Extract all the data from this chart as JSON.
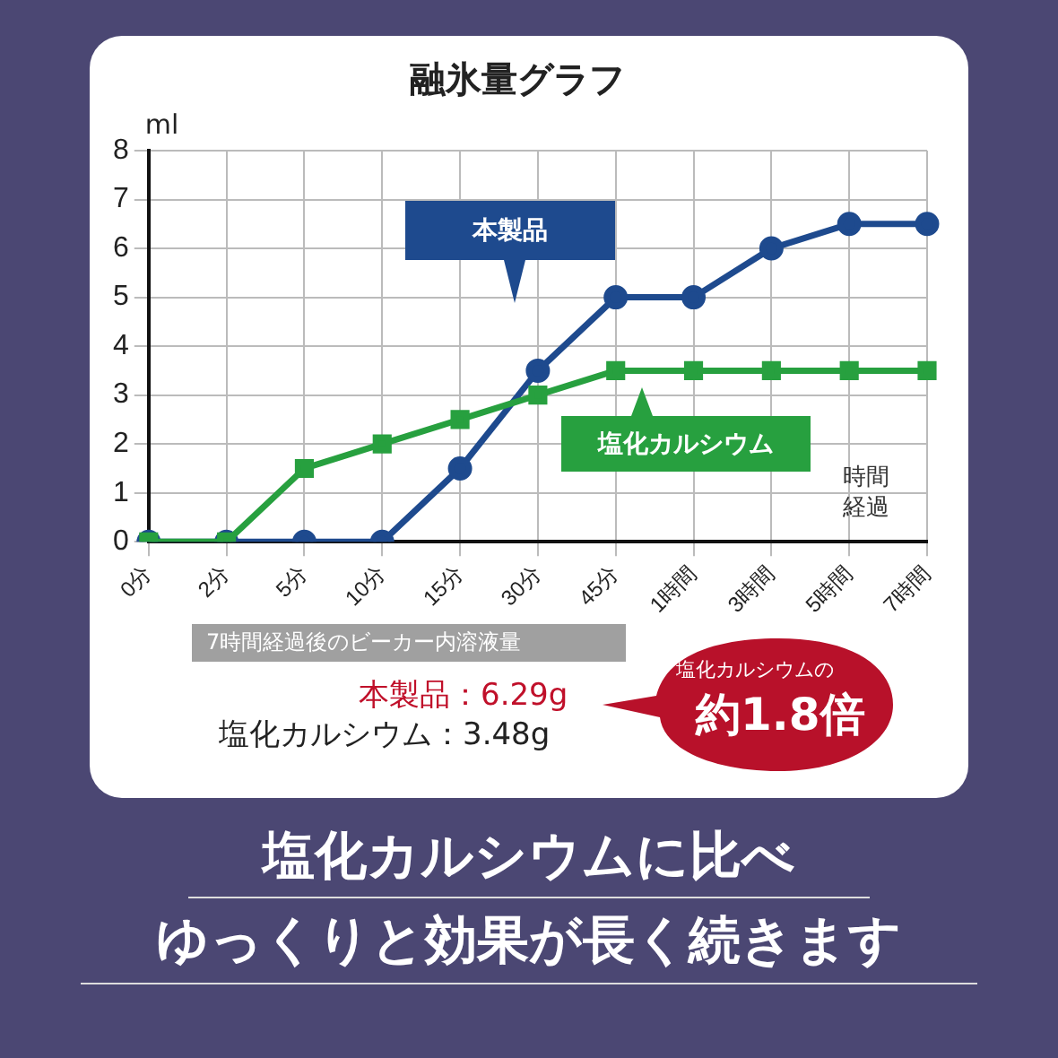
{
  "chart_data": {
    "type": "line",
    "title": "融氷量グラフ",
    "ylabel": "ml",
    "xlabel": "時間経過",
    "categories": [
      "0分",
      "2分",
      "5分",
      "10分",
      "15分",
      "30分",
      "45分",
      "1時間",
      "3時間",
      "5時間",
      "7時間"
    ],
    "series": [
      {
        "name": "本製品",
        "color": "#1e4a8e",
        "marker": "circle",
        "values": [
          0,
          0,
          0,
          0,
          1.5,
          3.5,
          5,
          5,
          6,
          6.5,
          6.5
        ]
      },
      {
        "name": "塩化カルシウム",
        "color": "#27a03f",
        "marker": "square",
        "values": [
          0,
          0,
          1.5,
          2,
          2.5,
          3,
          3.5,
          3.5,
          3.5,
          3.5,
          3.5
        ]
      }
    ],
    "ylim": [
      0,
      8
    ],
    "yticks": [
      0,
      1,
      2,
      3,
      4,
      5,
      6,
      7,
      8
    ],
    "grid": true,
    "legend": "right",
    "line_style": "solid",
    "annotations": [
      "7時間経過後のビーカー内溶液量",
      "本製品：6.29g",
      "塩化カルシウム：3.48g",
      "塩化カルシウムの",
      "約1.8倍",
      "塩化カルシウムに比べ",
      "ゆっくりと効果が長く続きます"
    ]
  }
}
